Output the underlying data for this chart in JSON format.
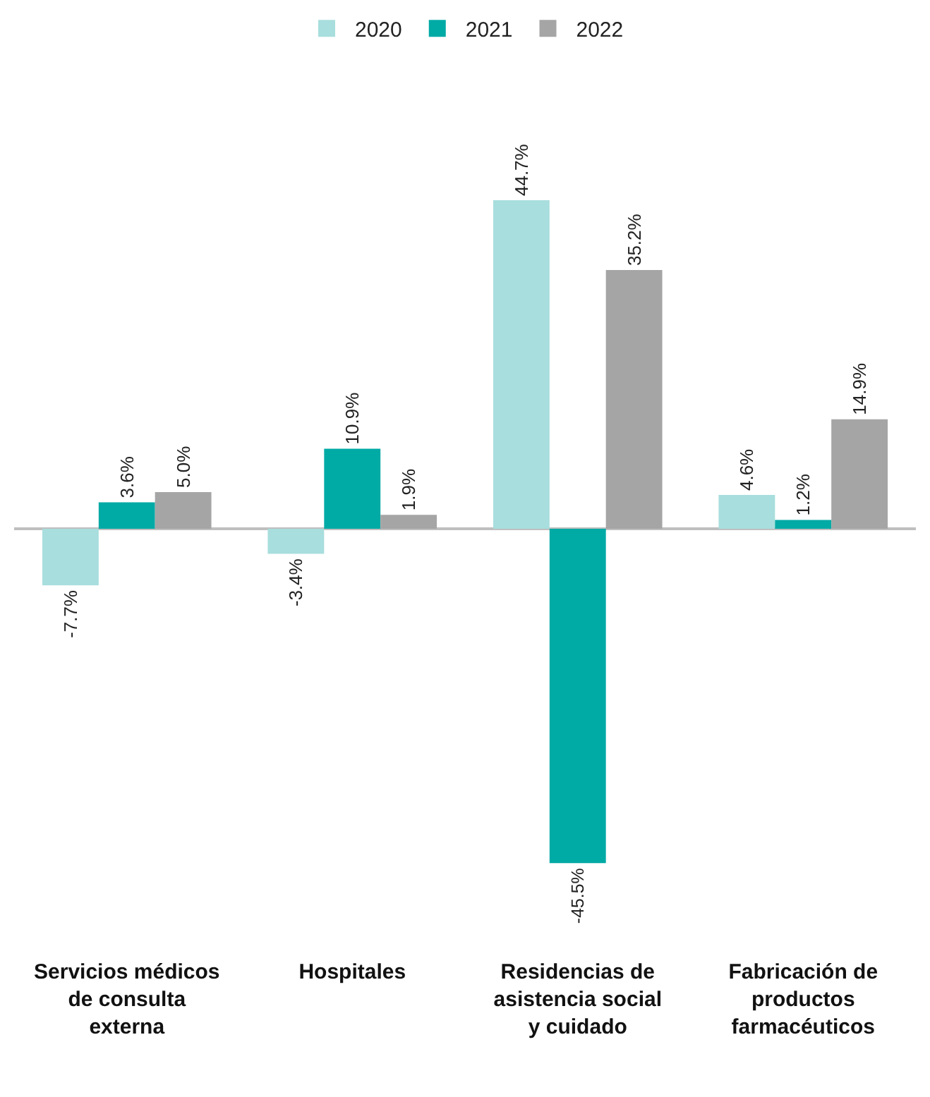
{
  "chart_data": {
    "type": "bar",
    "legend": "top",
    "categories": [
      "Servicios médicos de consulta externa",
      "Hospitales",
      "Residencias de asistencia social y cuidado",
      "Fabricación de productos farmacéuticos"
    ],
    "series": [
      {
        "name": "2020",
        "color": "#a8dedd",
        "values": [
          -7.7,
          -3.4,
          44.7,
          4.6
        ],
        "value_labels": [
          "-7.7%",
          "-3.4%",
          "44.7%",
          "4.6%"
        ]
      },
      {
        "name": "2021",
        "color": "#00aaa5",
        "values": [
          3.6,
          10.9,
          -45.5,
          1.2
        ],
        "value_labels": [
          "3.6%",
          "10.9%",
          "-45.5%",
          "1.2%"
        ]
      },
      {
        "name": "2022",
        "color": "#a5a5a5",
        "values": [
          5.0,
          1.9,
          35.2,
          14.9
        ],
        "value_labels": [
          "5.0%",
          "1.9%",
          "35.2%",
          "14.9%"
        ]
      }
    ]
  }
}
